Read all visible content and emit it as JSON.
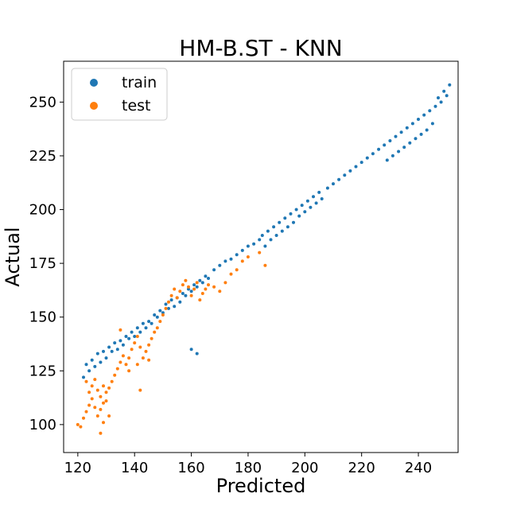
{
  "chart_data": {
    "type": "scatter",
    "title": "HM-B.ST - KNN",
    "xlabel": "Predicted",
    "ylabel": "Actual",
    "xlim": [
      115,
      254
    ],
    "ylim": [
      87,
      269
    ],
    "xticks": [
      120,
      140,
      160,
      180,
      200,
      220,
      240
    ],
    "yticks": [
      100,
      125,
      150,
      175,
      200,
      225,
      250
    ],
    "grid": false,
    "legend_position": "top-left",
    "series": [
      {
        "name": "train",
        "color": "#1f77b4",
        "points": [
          [
            122,
            122
          ],
          [
            123,
            128
          ],
          [
            124,
            125
          ],
          [
            125,
            130
          ],
          [
            126,
            127
          ],
          [
            127,
            133
          ],
          [
            128,
            129
          ],
          [
            129,
            134
          ],
          [
            130,
            131
          ],
          [
            131,
            136
          ],
          [
            132,
            134
          ],
          [
            133,
            138
          ],
          [
            134,
            135
          ],
          [
            135,
            139
          ],
          [
            136,
            137
          ],
          [
            137,
            141
          ],
          [
            138,
            140
          ],
          [
            139,
            143
          ],
          [
            140,
            141
          ],
          [
            141,
            145
          ],
          [
            142,
            143
          ],
          [
            143,
            147
          ],
          [
            144,
            145
          ],
          [
            145,
            148
          ],
          [
            146,
            147
          ],
          [
            147,
            151
          ],
          [
            148,
            150
          ],
          [
            149,
            153
          ],
          [
            150,
            152
          ],
          [
            151,
            156
          ],
          [
            152,
            154
          ],
          [
            153,
            158
          ],
          [
            154,
            155
          ],
          [
            155,
            159
          ],
          [
            156,
            157
          ],
          [
            157,
            161
          ],
          [
            158,
            160
          ],
          [
            159,
            163
          ],
          [
            160,
            162
          ],
          [
            161,
            165
          ],
          [
            162,
            164
          ],
          [
            163,
            167
          ],
          [
            164,
            166
          ],
          [
            165,
            169
          ],
          [
            166,
            168
          ],
          [
            168,
            172
          ],
          [
            170,
            174
          ],
          [
            172,
            176
          ],
          [
            160,
            135
          ],
          [
            162,
            133
          ],
          [
            174,
            177
          ],
          [
            176,
            179
          ],
          [
            178,
            181
          ],
          [
            180,
            183
          ],
          [
            182,
            184
          ],
          [
            184,
            186
          ],
          [
            185,
            188
          ],
          [
            186,
            183
          ],
          [
            187,
            190
          ],
          [
            188,
            186
          ],
          [
            189,
            192
          ],
          [
            190,
            188
          ],
          [
            191,
            194
          ],
          [
            192,
            190
          ],
          [
            193,
            196
          ],
          [
            194,
            192
          ],
          [
            195,
            198
          ],
          [
            196,
            194
          ],
          [
            197,
            200
          ],
          [
            198,
            197
          ],
          [
            199,
            202
          ],
          [
            200,
            199
          ],
          [
            201,
            204
          ],
          [
            202,
            201
          ],
          [
            203,
            206
          ],
          [
            204,
            203
          ],
          [
            205,
            208
          ],
          [
            206,
            205
          ],
          [
            208,
            210
          ],
          [
            210,
            212
          ],
          [
            212,
            214
          ],
          [
            214,
            216
          ],
          [
            216,
            218
          ],
          [
            218,
            220
          ],
          [
            220,
            222
          ],
          [
            222,
            224
          ],
          [
            224,
            226
          ],
          [
            226,
            228
          ],
          [
            228,
            230
          ],
          [
            230,
            232
          ],
          [
            232,
            234
          ],
          [
            234,
            236
          ],
          [
            236,
            238
          ],
          [
            238,
            240
          ],
          [
            240,
            242
          ],
          [
            242,
            244
          ],
          [
            244,
            246
          ],
          [
            246,
            248
          ],
          [
            248,
            250
          ],
          [
            250,
            253
          ],
          [
            251,
            258
          ],
          [
            249,
            255
          ],
          [
            247,
            252
          ],
          [
            245,
            240
          ],
          [
            243,
            237
          ],
          [
            241,
            235
          ],
          [
            239,
            233
          ],
          [
            237,
            231
          ],
          [
            235,
            229
          ],
          [
            233,
            227
          ],
          [
            231,
            225
          ],
          [
            229,
            223
          ]
        ]
      },
      {
        "name": "test",
        "color": "#ff7f0e",
        "points": [
          [
            120,
            100
          ],
          [
            121,
            99
          ],
          [
            122,
            103
          ],
          [
            123,
            106
          ],
          [
            124,
            109
          ],
          [
            125,
            112
          ],
          [
            126,
            108
          ],
          [
            127,
            104
          ],
          [
            128,
            107
          ],
          [
            129,
            110
          ],
          [
            130,
            115
          ],
          [
            124,
            115
          ],
          [
            125,
            118
          ],
          [
            123,
            120
          ],
          [
            126,
            121
          ],
          [
            127,
            116
          ],
          [
            128,
            113
          ],
          [
            129,
            118
          ],
          [
            130,
            111
          ],
          [
            131,
            117
          ],
          [
            132,
            120
          ],
          [
            133,
            123
          ],
          [
            134,
            126
          ],
          [
            135,
            129
          ],
          [
            136,
            132
          ],
          [
            137,
            128
          ],
          [
            138,
            131
          ],
          [
            139,
            135
          ],
          [
            140,
            138
          ],
          [
            141,
            141
          ],
          [
            142,
            136
          ],
          [
            143,
            131
          ],
          [
            144,
            134
          ],
          [
            145,
            137
          ],
          [
            146,
            140
          ],
          [
            147,
            143
          ],
          [
            148,
            145
          ],
          [
            149,
            148
          ],
          [
            150,
            151
          ],
          [
            151,
            154
          ],
          [
            152,
            157
          ],
          [
            153,
            160
          ],
          [
            154,
            163
          ],
          [
            155,
            159
          ],
          [
            156,
            162
          ],
          [
            157,
            165
          ],
          [
            158,
            167
          ],
          [
            159,
            164
          ],
          [
            160,
            160
          ],
          [
            161,
            163
          ],
          [
            162,
            166
          ],
          [
            163,
            158
          ],
          [
            164,
            161
          ],
          [
            165,
            163
          ],
          [
            166,
            165
          ],
          [
            168,
            164
          ],
          [
            170,
            162
          ],
          [
            172,
            166
          ],
          [
            174,
            170
          ],
          [
            176,
            172
          ],
          [
            178,
            176
          ],
          [
            180,
            178
          ],
          [
            184,
            180
          ],
          [
            186,
            174
          ],
          [
            128,
            96
          ],
          [
            129,
            101
          ],
          [
            131,
            104
          ],
          [
            142,
            116
          ],
          [
            145,
            130
          ],
          [
            135,
            144
          ],
          [
            138,
            125
          ],
          [
            141,
            128
          ]
        ]
      }
    ]
  }
}
